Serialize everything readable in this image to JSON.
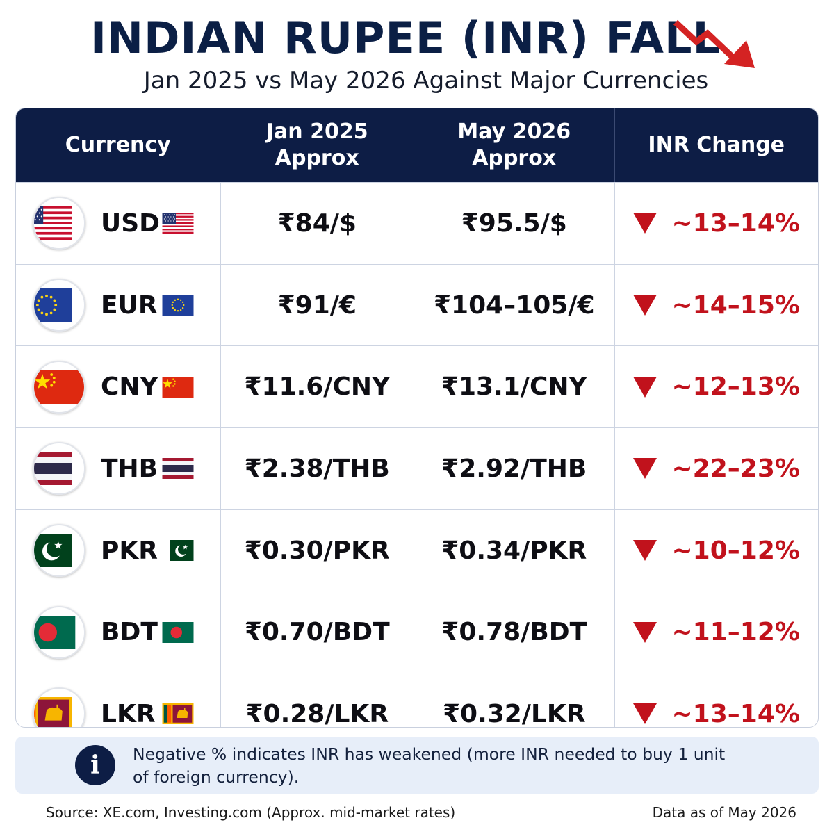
{
  "header": {
    "title": "INDIAN RUPEE (INR) FALL",
    "subtitle": "Jan 2025 vs May 2026 Against Major Currencies",
    "trend_icon": "down-trend-arrow",
    "accent_color": "#d42323"
  },
  "table": {
    "header_bg": "#0d1d45",
    "columns": {
      "currency": "Currency",
      "jan_line1": "Jan 2025",
      "jan_line2": "Approx",
      "may_line1": "May 2026",
      "may_line2": "Approx",
      "change": "INR Change"
    },
    "rows": [
      {
        "code": "USD",
        "flag": "us-flag-icon",
        "jan": "₹84/$",
        "may": "₹95.5/$",
        "change": "~13–14%"
      },
      {
        "code": "EUR",
        "flag": "eu-flag-icon",
        "jan": "₹91/€",
        "may": "₹104–105/€",
        "change": "~14–15%"
      },
      {
        "code": "CNY",
        "flag": "china-flag-icon",
        "jan": "₹11.6/CNY",
        "may": "₹13.1/CNY",
        "change": "~12–13%"
      },
      {
        "code": "THB",
        "flag": "thailand-flag-icon",
        "jan": "₹2.38/THB",
        "may": "₹2.92/THB",
        "change": "~22–23%"
      },
      {
        "code": "PKR",
        "flag": "pakistan-flag-icon",
        "jan": "₹0.30/PKR",
        "may": "₹0.34/PKR",
        "change": "~10–12%"
      },
      {
        "code": "BDT",
        "flag": "bangladesh-flag-icon",
        "jan": "₹0.70/BDT",
        "may": "₹0.78/BDT",
        "change": "~11–12%"
      },
      {
        "code": "LKR",
        "flag": "sri-lanka-flag-icon",
        "jan": "₹0.28/LKR",
        "may": "₹0.32/LKR",
        "change": "~13–14%"
      }
    ],
    "change_color": "#c1121c",
    "change_icon": "down-triangle-icon"
  },
  "note": {
    "icon": "info-icon",
    "line1": "Negative % indicates INR has weakened (more INR needed to buy 1 unit",
    "line2": "of foreign currency)."
  },
  "footer": {
    "source": "Source: XE.com, Investing.com (Approx. mid-market rates)",
    "as_of": "Data as of May 2026"
  }
}
